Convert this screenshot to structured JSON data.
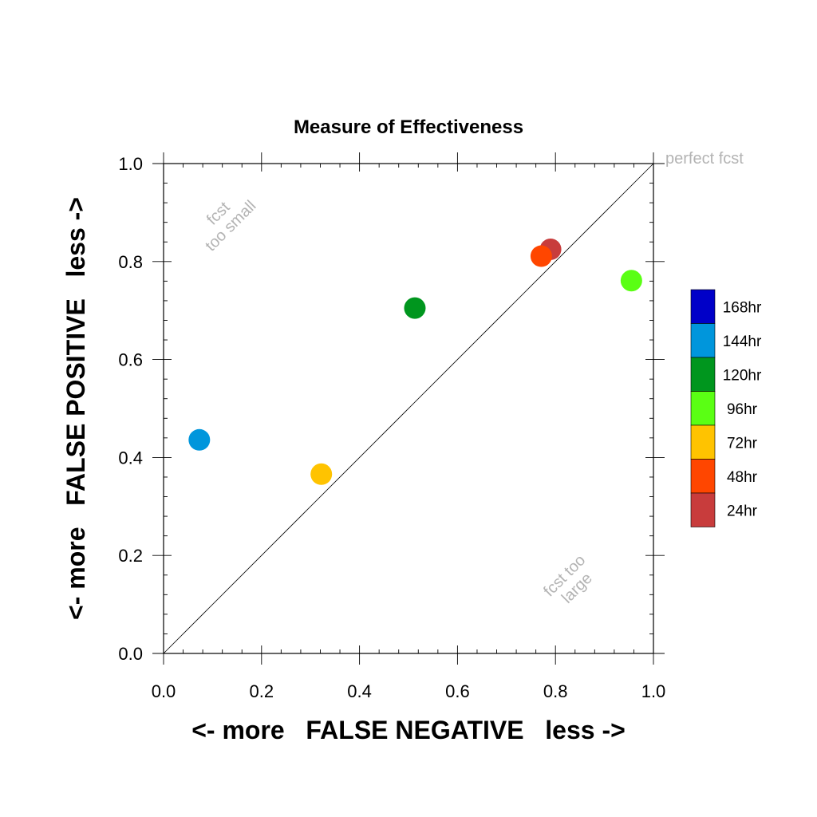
{
  "chart_data": {
    "type": "scatter",
    "title": "Measure of Effectiveness",
    "xlabel": "<- more   FALSE NEGATIVE   less ->",
    "ylabel": "<- more   FALSE POSITIVE   less ->",
    "xlim": [
      0.0,
      1.0
    ],
    "ylim": [
      0.0,
      1.0
    ],
    "xticks": [
      "0.0",
      "0.2",
      "0.4",
      "0.6",
      "0.8",
      "1.0"
    ],
    "yticks": [
      "0.0",
      "0.2",
      "0.4",
      "0.6",
      "0.8",
      "1.0"
    ],
    "grid": false,
    "legend_position": "right",
    "diagonal_line": true,
    "annotations": {
      "perfect": "perfect fcst",
      "too_small_1": "fcst",
      "too_small_2": "too small",
      "too_large_1": "fcst too",
      "too_large_2": "large"
    },
    "series": [
      {
        "name": "168hr",
        "color": "#0000c8"
      },
      {
        "name": "144hr",
        "color": "#0096dc",
        "x": 0.073,
        "y": 0.436
      },
      {
        "name": "120hr",
        "color": "#00961e",
        "x": 0.513,
        "y": 0.705
      },
      {
        "name": "96hr",
        "color": "#5aff14",
        "x": 0.955,
        "y": 0.761
      },
      {
        "name": "72hr",
        "color": "#ffc300",
        "x": 0.322,
        "y": 0.366
      },
      {
        "name": "48hr",
        "color": "#ff4600",
        "x": 0.771,
        "y": 0.811
      },
      {
        "name": "24hr",
        "color": "#c83c3c",
        "x": 0.79,
        "y": 0.825
      }
    ]
  }
}
